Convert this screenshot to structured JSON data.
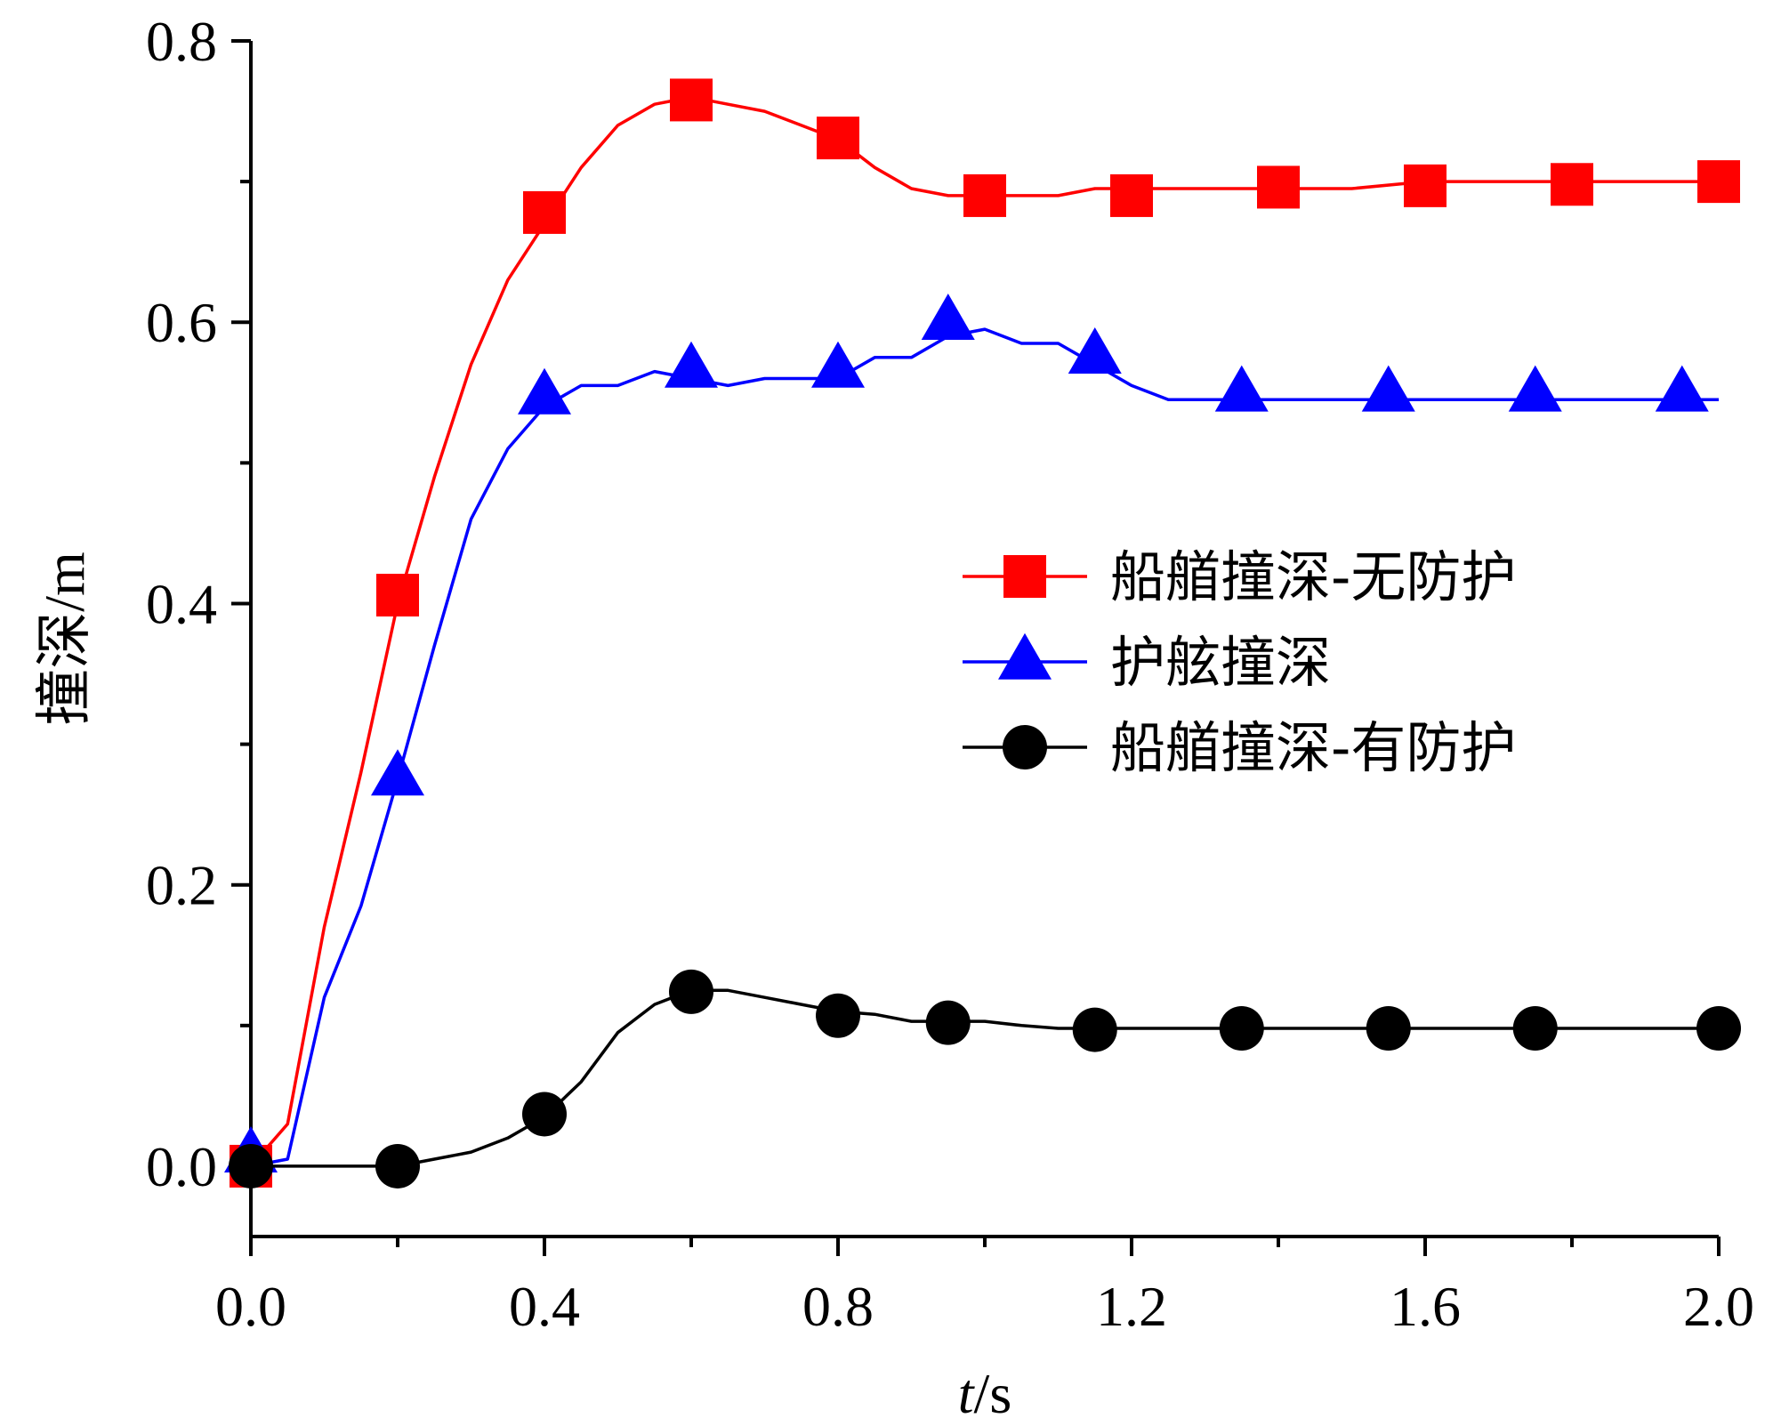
{
  "chart_data": {
    "type": "line",
    "xlabel_italic": "t",
    "xlabel_unit": "/s",
    "ylabel": "撞深/m",
    "xlim": [
      0.0,
      2.0
    ],
    "ylim": [
      -0.05,
      0.8
    ],
    "x_ticks": [
      "0.0",
      "0.4",
      "0.8",
      "1.2",
      "1.6",
      "2.0"
    ],
    "y_ticks": [
      "0.0",
      "0.2",
      "0.4",
      "0.6",
      "0.8"
    ],
    "legend_position": "right-middle",
    "series": [
      {
        "name": "船艏撞深-无防护",
        "color": "#ff0000",
        "marker": "square",
        "line_x": [
          0,
          0.05,
          0.1,
          0.15,
          0.2,
          0.25,
          0.3,
          0.35,
          0.4,
          0.45,
          0.5,
          0.55,
          0.6,
          0.65,
          0.7,
          0.75,
          0.8,
          0.85,
          0.9,
          0.95,
          1.0,
          1.05,
          1.1,
          1.15,
          1.2,
          1.3,
          1.4,
          1.5,
          1.6,
          1.7,
          1.8,
          1.9,
          2.0
        ],
        "line_y": [
          0,
          0.03,
          0.17,
          0.28,
          0.4,
          0.49,
          0.57,
          0.63,
          0.67,
          0.71,
          0.74,
          0.755,
          0.76,
          0.755,
          0.75,
          0.74,
          0.73,
          0.71,
          0.695,
          0.69,
          0.69,
          0.69,
          0.69,
          0.695,
          0.695,
          0.695,
          0.695,
          0.695,
          0.7,
          0.7,
          0.7,
          0.7,
          0.7
        ],
        "marker_x": [
          0,
          0.2,
          0.4,
          0.6,
          0.8,
          1.0,
          1.2,
          1.4,
          1.6,
          1.8,
          2.0
        ],
        "marker_y": [
          0,
          0.406,
          0.678,
          0.758,
          0.731,
          0.69,
          0.69,
          0.696,
          0.697,
          0.698,
          0.7
        ]
      },
      {
        "name": "护舷撞深",
        "color": "#0000ff",
        "marker": "triangle",
        "line_x": [
          0,
          0.05,
          0.1,
          0.15,
          0.2,
          0.25,
          0.3,
          0.35,
          0.4,
          0.45,
          0.5,
          0.55,
          0.6,
          0.65,
          0.7,
          0.75,
          0.8,
          0.85,
          0.9,
          0.95,
          1.0,
          1.05,
          1.1,
          1.15,
          1.2,
          1.25,
          1.3,
          1.4,
          1.5,
          1.6,
          1.7,
          1.8,
          1.9,
          2.0
        ],
        "line_y": [
          0,
          0.005,
          0.12,
          0.185,
          0.275,
          0.37,
          0.46,
          0.51,
          0.54,
          0.555,
          0.555,
          0.565,
          0.56,
          0.555,
          0.56,
          0.56,
          0.56,
          0.575,
          0.575,
          0.59,
          0.595,
          0.585,
          0.585,
          0.57,
          0.555,
          0.545,
          0.545,
          0.545,
          0.545,
          0.545,
          0.545,
          0.545,
          0.545,
          0.545
        ],
        "marker_x": [
          0,
          0.2,
          0.4,
          0.6,
          0.8,
          0.95,
          1.15,
          1.35,
          1.55,
          1.75,
          1.95
        ],
        "marker_y": [
          0.008,
          0.276,
          0.547,
          0.566,
          0.566,
          0.6,
          0.576,
          0.549,
          0.549,
          0.549,
          0.549
        ]
      },
      {
        "name": "船艏撞深-有防护",
        "color": "#000000",
        "marker": "circle",
        "line_x": [
          0,
          0.1,
          0.2,
          0.25,
          0.3,
          0.35,
          0.4,
          0.45,
          0.5,
          0.55,
          0.6,
          0.65,
          0.7,
          0.75,
          0.8,
          0.85,
          0.9,
          0.95,
          1.0,
          1.05,
          1.1,
          1.15,
          1.2,
          1.3,
          1.4,
          1.5,
          1.6,
          1.7,
          1.8,
          1.9,
          2.0
        ],
        "line_y": [
          0,
          0,
          0,
          0.005,
          0.01,
          0.02,
          0.035,
          0.06,
          0.095,
          0.115,
          0.125,
          0.125,
          0.12,
          0.115,
          0.11,
          0.108,
          0.103,
          0.103,
          0.103,
          0.1,
          0.098,
          0.098,
          0.098,
          0.098,
          0.098,
          0.098,
          0.098,
          0.098,
          0.098,
          0.098,
          0.098
        ],
        "marker_x": [
          0,
          0.2,
          0.4,
          0.6,
          0.8,
          0.95,
          1.15,
          1.35,
          1.55,
          1.75,
          2.0
        ],
        "marker_y": [
          0,
          0,
          0.037,
          0.124,
          0.107,
          0.102,
          0.097,
          0.098,
          0.098,
          0.098,
          0.098
        ]
      }
    ]
  }
}
